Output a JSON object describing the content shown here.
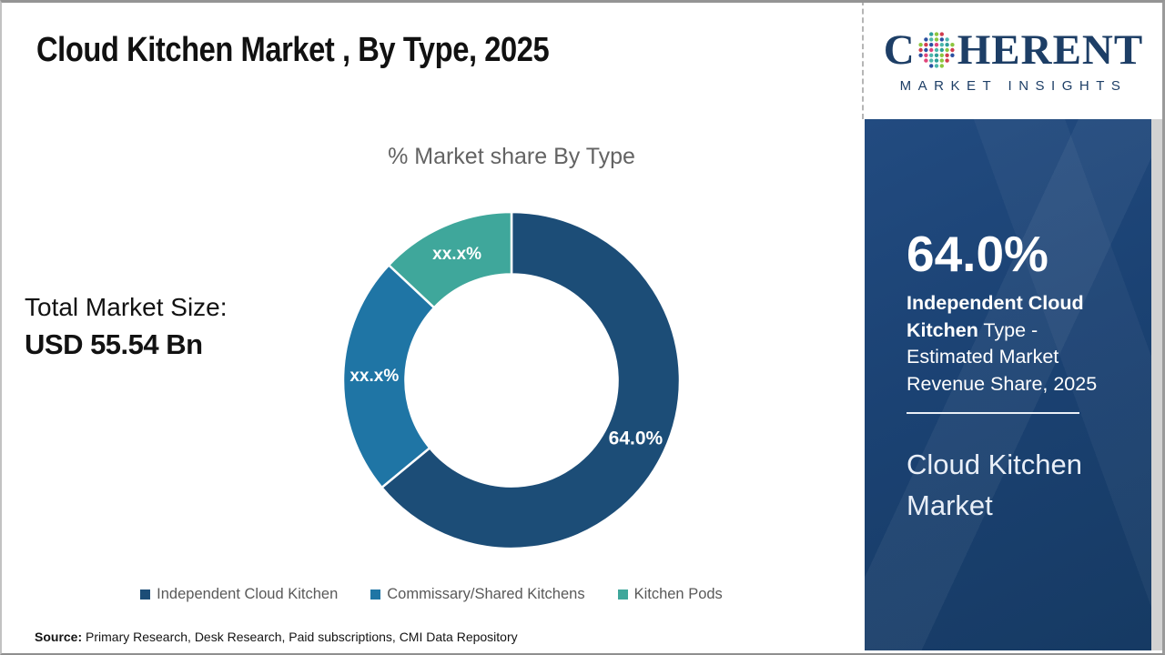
{
  "header": {
    "title": "Cloud Kitchen Market , By Type, 2025"
  },
  "logo": {
    "word_part1": "C",
    "word_part2": "HERENT",
    "subtitle": "MARKET INSIGHTS",
    "navy": "#1d3e66",
    "globe_dot_colors": [
      "#2f9e99",
      "#8dc63f",
      "#d13d4e",
      "#2b50a1",
      "#e0457b",
      "#4db6ac"
    ]
  },
  "chart_data": {
    "type": "donut",
    "title": "% Market share By Type",
    "categories": [
      "Independent Cloud Kitchen",
      "Commissary/Shared Kitchens",
      "Kitchen Pods"
    ],
    "values": [
      64.0,
      23.0,
      13.0
    ],
    "value_labels": [
      "64.0%",
      "xx.x%",
      "xx.x%"
    ],
    "colors": [
      "#1c4d77",
      "#1f75a5",
      "#3fa79b"
    ],
    "start_angle_deg": 0,
    "direction": "clockwise",
    "donut_hole_ratio": 0.63,
    "separator_color": "#ffffff",
    "legend_position": "bottom",
    "label_color": "#ffffff"
  },
  "left_panel": {
    "total_label": "Total Market Size:",
    "total_value": "USD 55.54 Bn"
  },
  "right_panel": {
    "stat_value": "64.0%",
    "stat_bold": "Independent Cloud Kitchen",
    "stat_rest": " Type - Estimated Market Revenue Share, 2025",
    "market_name": "Cloud Kitchen Market",
    "background": "#1b4273"
  },
  "footer": {
    "source_label": "Source:",
    "source_text": " Primary Research, Desk Research, Paid subscriptions, CMI Data Repository"
  }
}
